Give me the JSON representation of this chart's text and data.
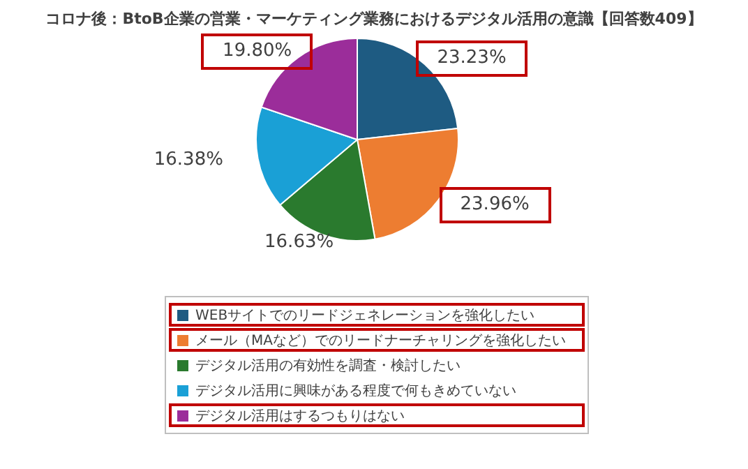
{
  "chart_data": {
    "type": "pie",
    "title": "コロナ後：BtoB企業の営業・マーケティング業務におけるデジタル活用の意識【回答数409】",
    "categories": [
      "WEBサイトでのリードジェネレーションを強化したい",
      "メール（MAなど）でのリードナーチャリングを強化したい",
      "デジタル活用の有効性を調査・検討したい",
      "デジタル活用に興味がある程度で何もきめていない",
      "デジタル活用はするつもりはない"
    ],
    "values": [
      23.23,
      23.96,
      16.63,
      16.38,
      19.8
    ],
    "colors": [
      "#1e5b82",
      "#ed7d31",
      "#2a7a2e",
      "#1aa0d6",
      "#9b2d9a"
    ],
    "value_labels": [
      "23.23%",
      "23.96%",
      "16.63%",
      "16.38%",
      "19.80%"
    ],
    "legend": "bottom"
  }
}
